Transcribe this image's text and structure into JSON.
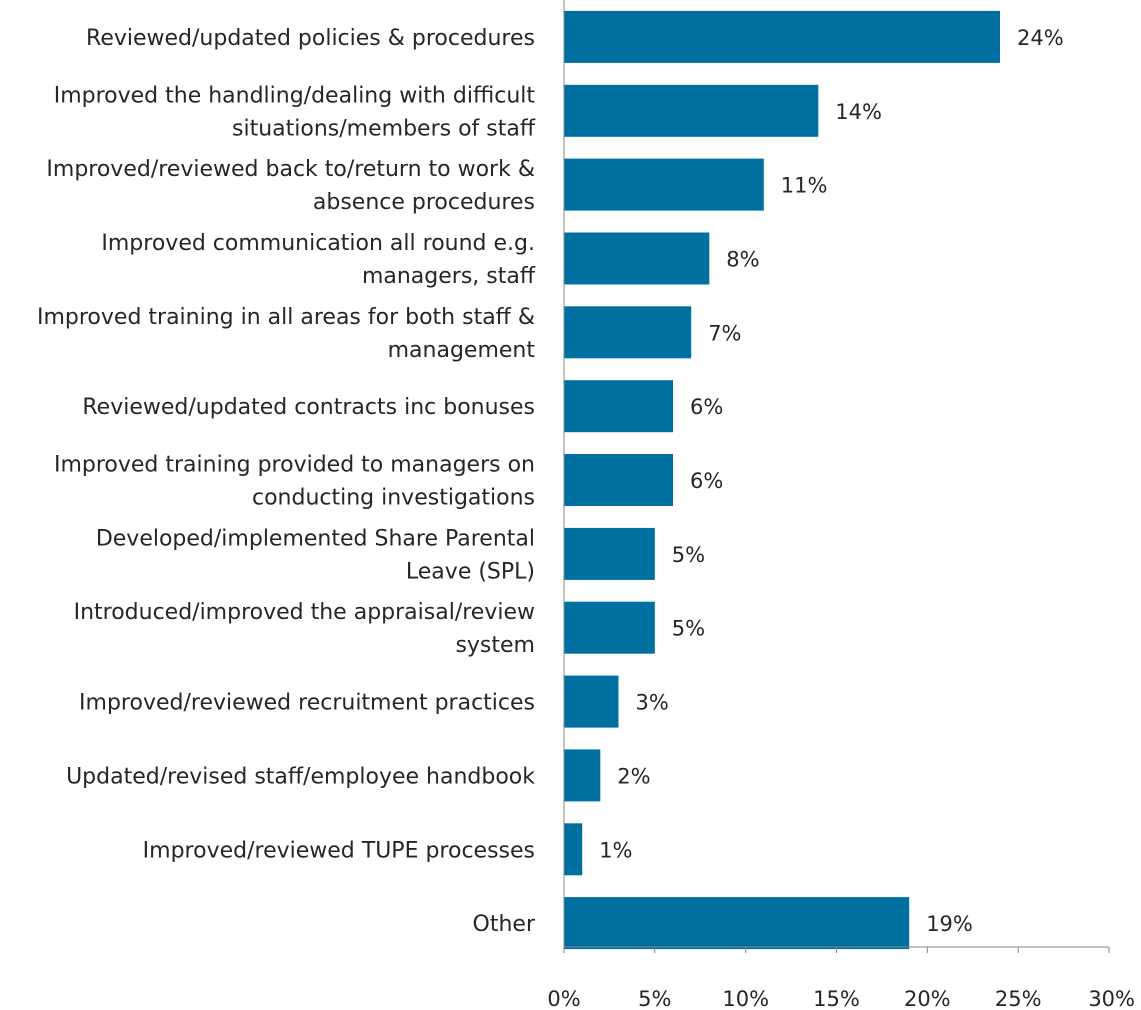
{
  "chart_data": {
    "type": "bar",
    "orientation": "horizontal",
    "categories": [
      [
        "Reviewed/updated policies & procedures"
      ],
      [
        "Improved the handling/dealing with difficult",
        "situations/members of staff"
      ],
      [
        "Improved/reviewed back to/return to work &",
        "absence procedures"
      ],
      [
        "Improved communication all round e.g.",
        "managers, staff"
      ],
      [
        "Improved training in all areas for both staff &",
        "management"
      ],
      [
        "Reviewed/updated contracts inc bonuses"
      ],
      [
        "Improved training provided to managers on",
        "conducting investigations"
      ],
      [
        "Developed/implemented Share Parental",
        "Leave (SPL)"
      ],
      [
        "Introduced/improved the appraisal/review",
        "system"
      ],
      [
        "Improved/reviewed  recruitment practices"
      ],
      [
        "Updated/revised staff/employee handbook"
      ],
      [
        "Improved/reviewed TUPE processes"
      ],
      [
        "Other"
      ]
    ],
    "values": [
      24,
      14,
      11,
      8,
      7,
      6,
      6,
      5,
      5,
      3,
      2,
      1,
      19
    ],
    "value_labels": [
      "24%",
      "14%",
      "11%",
      "8%",
      "7%",
      "6%",
      "6%",
      "5%",
      "5%",
      "3%",
      "2%",
      "1%",
      "19%"
    ],
    "xlim": [
      0,
      30
    ],
    "ticks": [
      0,
      5,
      10,
      15,
      20,
      25,
      30
    ],
    "tick_labels": [
      "0%",
      "5%",
      "10%",
      "15%",
      "20%",
      "25%",
      "30%"
    ],
    "title": "",
    "xlabel": "",
    "ylabel": "",
    "grid": false,
    "legend": "none",
    "bar_color": "#0070A0"
  }
}
